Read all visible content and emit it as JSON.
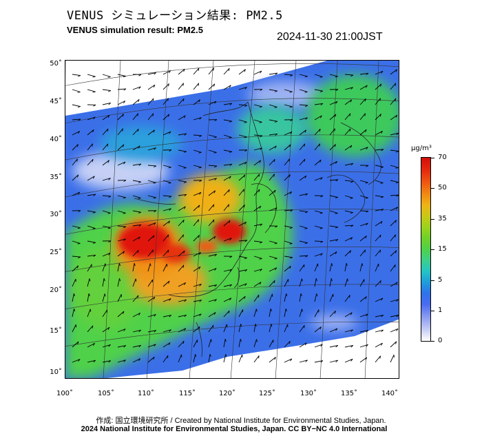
{
  "header": {
    "title_jp": "VENUS シミュレーション結果: PM2.5",
    "title_en": "VENUS simulation result: PM2.5",
    "timestamp": "2024-11-30 21:00JST"
  },
  "map": {
    "lat_labels": [
      "50˚",
      "45˚",
      "40˚",
      "35˚",
      "30˚",
      "25˚",
      "20˚",
      "15˚",
      "10˚"
    ],
    "lon_labels": [
      "100˚",
      "105˚",
      "110˚",
      "115˚",
      "120˚",
      "125˚",
      "130˚",
      "135˚",
      "140˚"
    ],
    "lat_range": [
      10,
      50
    ],
    "lon_range": [
      100,
      140
    ]
  },
  "colorbar": {
    "unit": "μg/m³",
    "ticks": [
      "70",
      "50",
      "35",
      "15",
      "5",
      "1",
      "0"
    ]
  },
  "footer": {
    "credit": "作成: 国立環境研究所 / Created by National Institute for Environmental Studies, Japan.",
    "license": "2024 National Institute for Environmental Studies, Japan. CC BY−NC 4.0 International"
  },
  "colors": {
    "clean_air": "#3b6fe8",
    "moderate": "#4fd14a",
    "high": "#f0a020",
    "very_high": "#e0180c"
  }
}
